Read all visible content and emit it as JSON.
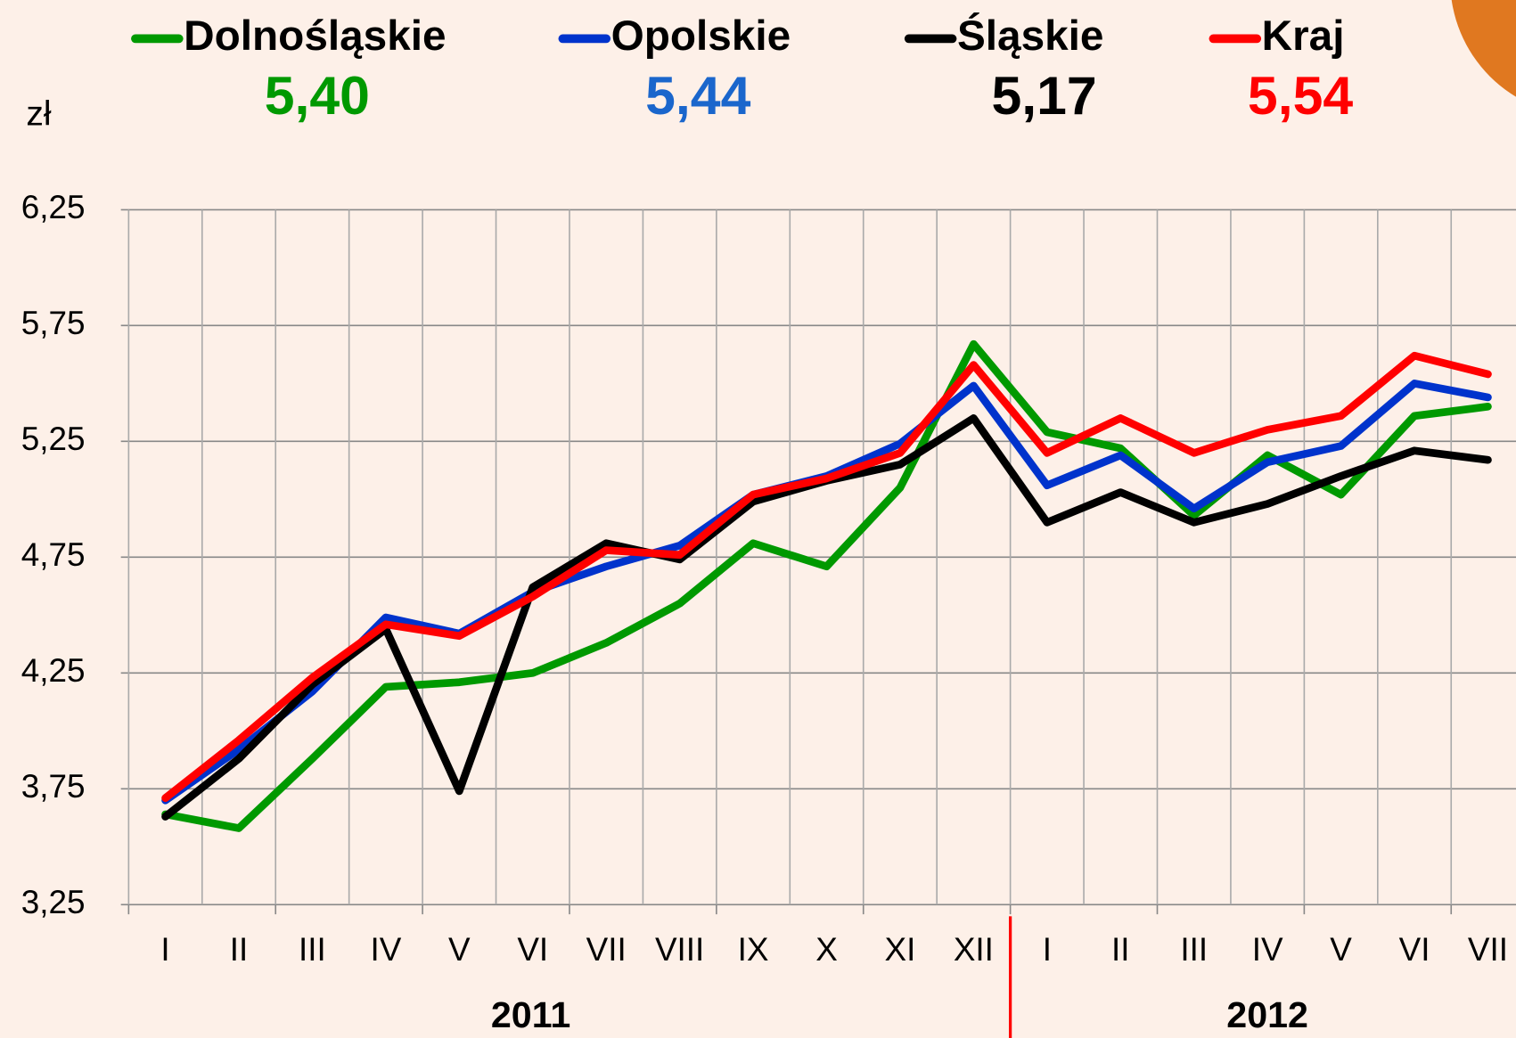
{
  "chart_data": {
    "type": "line",
    "ylabel": "zł",
    "categories": [
      "I",
      "II",
      "III",
      "IV",
      "V",
      "VI",
      "VII",
      "VIII",
      "IX",
      "X",
      "XI",
      "XII",
      "I",
      "II",
      "III",
      "IV",
      "V",
      "VI",
      "VII"
    ],
    "x_groups": [
      {
        "label": "2011",
        "count": 12
      },
      {
        "label": "2012",
        "count": 7
      }
    ],
    "ylim": [
      3.25,
      6.25
    ],
    "yticks": [
      {
        "value": 3.25,
        "label": "3,25"
      },
      {
        "value": 3.75,
        "label": "3,75"
      },
      {
        "value": 4.25,
        "label": "4,25"
      },
      {
        "value": 4.75,
        "label": "4,75"
      },
      {
        "value": 5.25,
        "label": "5,25"
      },
      {
        "value": 5.75,
        "label": "5,75"
      },
      {
        "value": 6.25,
        "label": "6,25"
      }
    ],
    "grid": true,
    "series": [
      {
        "name": "Dolnośląskie",
        "color": "#009900",
        "values": [
          3.64,
          3.58,
          3.88,
          4.19,
          4.21,
          4.25,
          4.38,
          4.55,
          4.81,
          4.71,
          5.05,
          5.67,
          5.29,
          5.22,
          4.93,
          5.19,
          5.02,
          5.36,
          5.4
        ],
        "value_labels": [
          null,
          null,
          null,
          null,
          null,
          null,
          null,
          null,
          null,
          null,
          null,
          null,
          null,
          null,
          null,
          null,
          null,
          null,
          "5,40"
        ]
      },
      {
        "name": "Opolskie",
        "color": "#0033cc",
        "values": [
          3.7,
          3.92,
          4.17,
          4.49,
          4.42,
          4.6,
          4.71,
          4.8,
          5.02,
          5.1,
          5.24,
          5.49,
          5.06,
          5.19,
          4.96,
          5.16,
          5.23,
          5.5,
          5.44
        ],
        "value_labels": [
          null,
          null,
          null,
          null,
          null,
          null,
          null,
          null,
          null,
          null,
          null,
          null,
          null,
          null,
          null,
          null,
          null,
          null,
          "5,44"
        ]
      },
      {
        "name": "Śląskie",
        "color": "#000000",
        "values": [
          3.63,
          3.88,
          4.2,
          4.44,
          3.74,
          4.62,
          4.81,
          4.74,
          4.99,
          5.08,
          5.15,
          5.35,
          4.9,
          5.03,
          4.9,
          4.98,
          5.1,
          5.21,
          5.17
        ],
        "value_labels": [
          null,
          null,
          null,
          null,
          null,
          null,
          null,
          null,
          null,
          null,
          null,
          null,
          null,
          null,
          null,
          null,
          null,
          null,
          "5,17"
        ]
      },
      {
        "name": "Kraj",
        "color": "#ff0000",
        "values": [
          3.71,
          3.96,
          4.23,
          4.46,
          4.41,
          4.58,
          4.78,
          4.76,
          5.02,
          5.09,
          5.2,
          5.58,
          5.2,
          5.35,
          5.2,
          5.3,
          5.36,
          5.62,
          5.54
        ],
        "value_labels": [
          null,
          null,
          null,
          null,
          null,
          null,
          null,
          null,
          null,
          null,
          null,
          null,
          null,
          null,
          null,
          null,
          null,
          null,
          "5,54"
        ]
      }
    ]
  }
}
